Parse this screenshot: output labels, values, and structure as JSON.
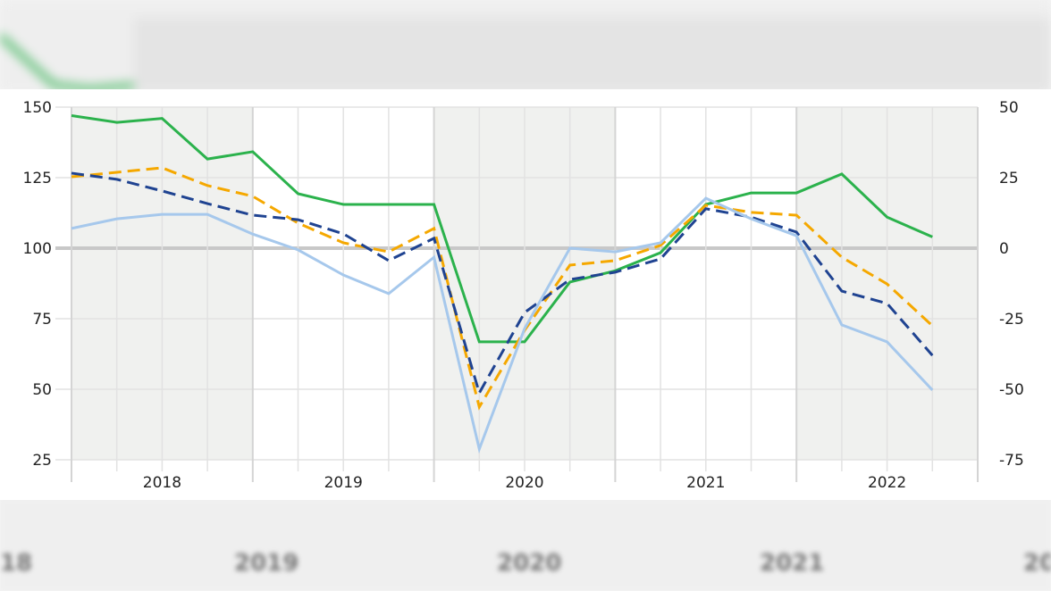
{
  "chart_data": {
    "type": "line",
    "title": "",
    "x": [
      "2018 Q1",
      "2018 Q2",
      "2018 Q3",
      "2018 Q4",
      "2019 Q1",
      "2019 Q2",
      "2019 Q3",
      "2019 Q4",
      "2020 Q1",
      "2020 Q2",
      "2020 Q3",
      "2020 Q4",
      "2021 Q1",
      "2021 Q2",
      "2021 Q3",
      "2021 Q4",
      "2022 Q1",
      "2022 Q2",
      "2022 Q3",
      "2022 Q4"
    ],
    "year_labels": [
      "2018",
      "2019",
      "2020",
      "2021",
      "2022"
    ],
    "y_left": {
      "range": [
        25,
        150
      ],
      "ticks": [
        "150",
        "125",
        "100",
        "75",
        "50",
        "25"
      ]
    },
    "y_right": {
      "range": [
        -75,
        50
      ],
      "ticks": [
        "50",
        "25",
        "0",
        "-25",
        "-50",
        "-75"
      ]
    },
    "grid": true,
    "reference_line": 100,
    "shaded_years": [
      "2018",
      "2020",
      "2022"
    ],
    "series": [
      {
        "color": "#2bb24c",
        "style": "solid",
        "values": [
          147,
          144.6,
          146,
          131.6,
          134.2,
          119.3,
          115.5,
          115.5,
          115.5,
          66.8,
          66.8,
          88,
          92,
          98.4,
          115.5,
          119.6,
          119.6,
          126.3,
          111,
          104
        ]
      },
      {
        "color": "#f5a800",
        "style": "dashed",
        "values": [
          125.3,
          126.9,
          128.5,
          122.2,
          118.4,
          108.9,
          101.9,
          98.7,
          107,
          43.7,
          70.9,
          94,
          95.6,
          101,
          115.2,
          112.7,
          111.7,
          96.8,
          87.3,
          72.5
        ]
      },
      {
        "color": "#1f4391",
        "style": "dashed",
        "values": [
          126.6,
          124.4,
          120.3,
          115.8,
          111.7,
          110.1,
          105.1,
          95.6,
          103.5,
          48.7,
          77.2,
          88.9,
          91.5,
          96.2,
          114,
          111,
          105.7,
          84.8,
          80.4,
          62
        ]
      },
      {
        "color": "#a6c8ec",
        "style": "solid",
        "values": [
          107,
          110.4,
          112,
          112,
          105,
          99.4,
          90.5,
          83.9,
          96.8,
          28.8,
          71.5,
          100,
          98.7,
          101.9,
          117.7,
          110.4,
          104.4,
          72.8,
          66.8,
          49.7
        ]
      }
    ]
  },
  "background": {
    "labels": [
      "18",
      "2019",
      "2020",
      "2021",
      "20"
    ]
  }
}
